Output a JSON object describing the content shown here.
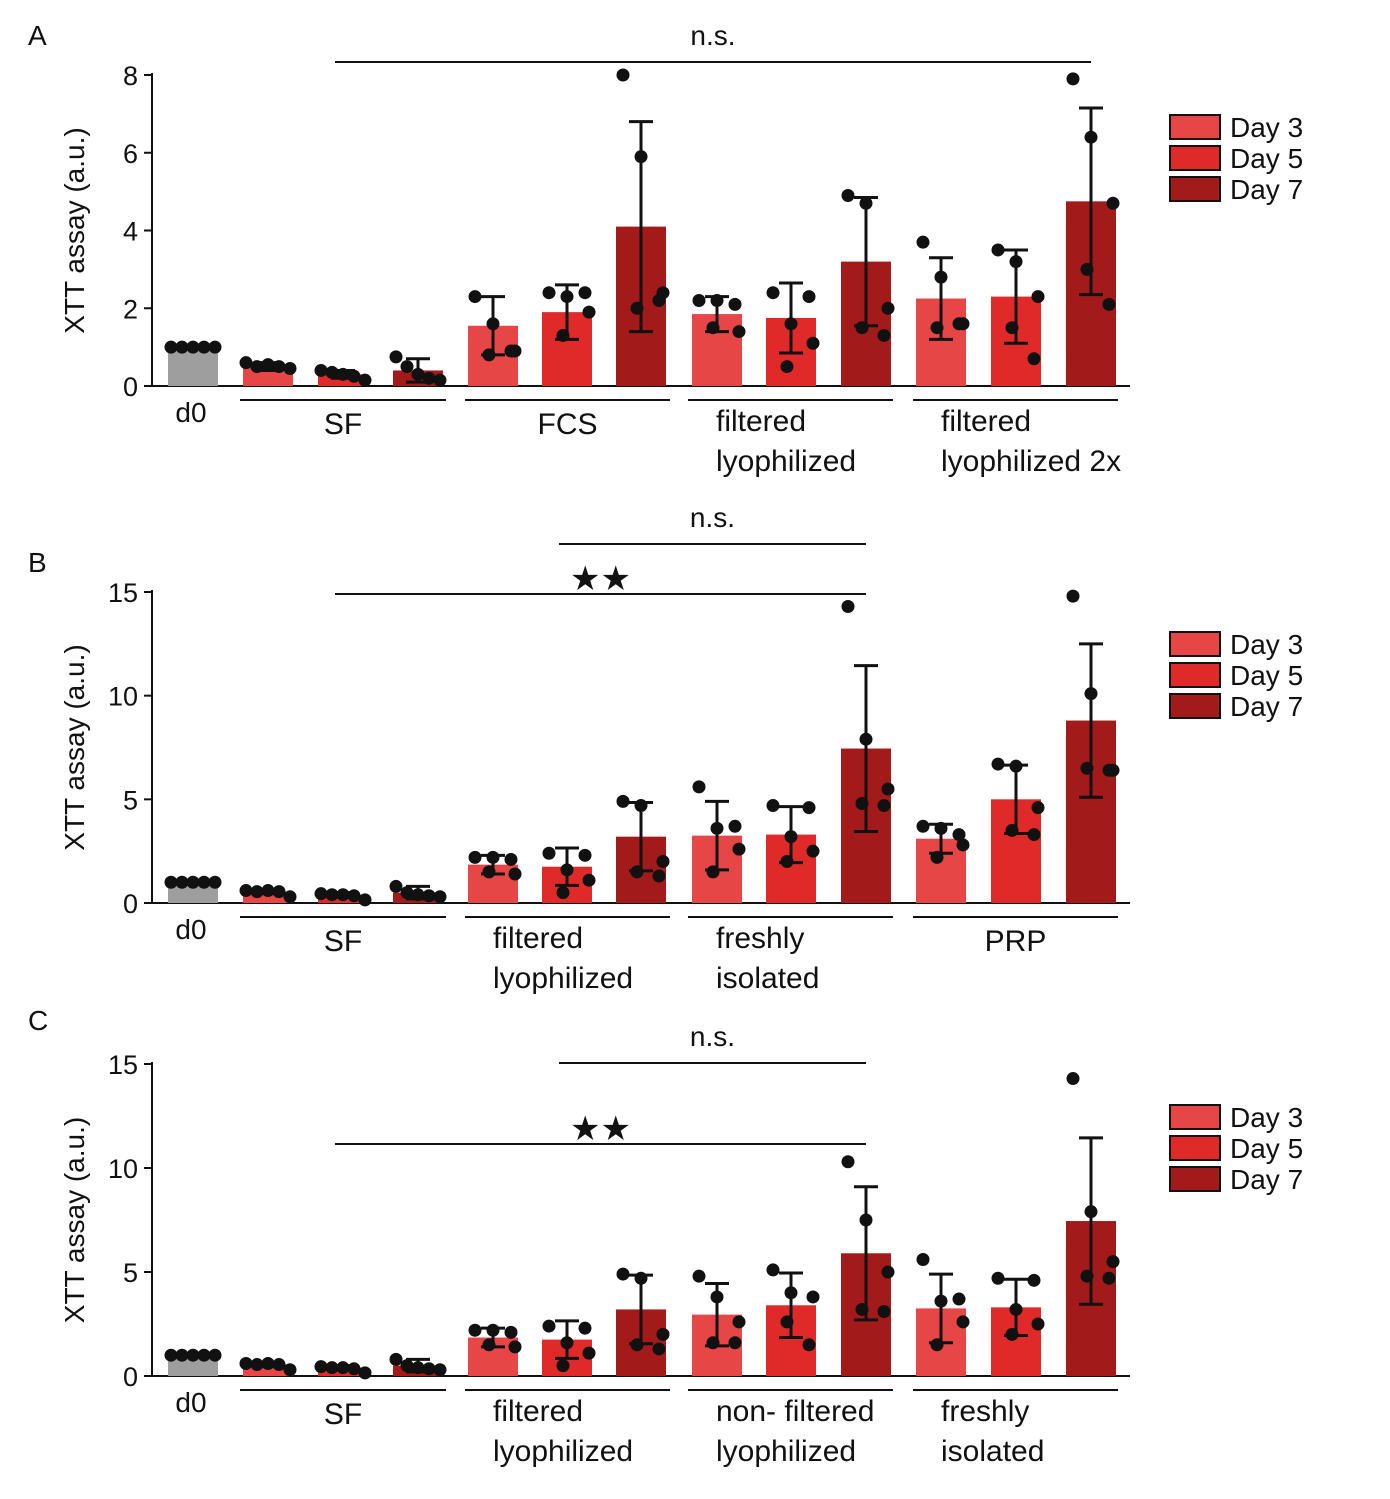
{
  "figure": {
    "axis_label": "XTT assay (a.u.)",
    "legend": [
      "Day 3",
      "Day 5",
      "Day 7"
    ],
    "colors": {
      "d0": "#9e9e9e",
      "day3": "#e64646",
      "day5": "#e02a2a",
      "day7": "#a31a1a",
      "ink": "#111111"
    }
  },
  "chart_data": [
    {
      "type": "bar",
      "panel": "A",
      "ylabel": "XTT assay (a.u.)",
      "ylim": [
        0,
        8
      ],
      "yticks": [
        0,
        2,
        4,
        6,
        8
      ],
      "legend": [
        "Day 3",
        "Day 5",
        "Day 7"
      ],
      "groups": [
        {
          "label": "d0",
          "bars": [
            {
              "series": "d0",
              "value": 1.0,
              "err": 0.05,
              "points": [
                1.0,
                1.0,
                1.0,
                1.0,
                1.0
              ]
            }
          ]
        },
        {
          "label": "SF",
          "bars": [
            {
              "series": "Day 3",
              "value": 0.5,
              "err": 0.1,
              "points": [
                0.6,
                0.5,
                0.55,
                0.5,
                0.45
              ]
            },
            {
              "series": "Day 5",
              "value": 0.3,
              "err": 0.1,
              "points": [
                0.4,
                0.35,
                0.3,
                0.25,
                0.15
              ]
            },
            {
              "series": "Day 7",
              "value": 0.4,
              "err": 0.3,
              "points": [
                0.75,
                0.5,
                0.3,
                0.2,
                0.15
              ]
            }
          ]
        },
        {
          "label": "FCS",
          "bars": [
            {
              "series": "Day 3",
              "value": 1.55,
              "err": 0.75,
              "points": [
                2.3,
                1.6,
                0.9,
                0.8,
                0.9
              ]
            },
            {
              "series": "Day 5",
              "value": 1.9,
              "err": 0.7,
              "points": [
                2.4,
                2.3,
                1.9,
                1.3,
                2.4
              ]
            },
            {
              "series": "Day 7",
              "value": 4.1,
              "err": 2.7,
              "points": [
                8.0,
                5.9,
                2.4,
                2.0,
                2.2
              ]
            }
          ]
        },
        {
          "label": "filtered\nlyophilized",
          "bars": [
            {
              "series": "Day 3",
              "value": 1.85,
              "err": 0.45,
              "points": [
                2.2,
                2.2,
                1.4,
                1.5,
                2.1
              ]
            },
            {
              "series": "Day 5",
              "value": 1.75,
              "err": 0.9,
              "points": [
                2.4,
                1.6,
                1.1,
                0.5,
                2.3
              ]
            },
            {
              "series": "Day 7",
              "value": 3.2,
              "err": 1.65,
              "points": [
                4.9,
                4.7,
                2.0,
                1.5,
                1.3
              ]
            }
          ]
        },
        {
          "label": "filtered\nlyophilized 2x",
          "bars": [
            {
              "series": "Day 3",
              "value": 2.25,
              "err": 1.05,
              "points": [
                3.7,
                2.8,
                1.6,
                1.5,
                1.6
              ]
            },
            {
              "series": "Day 5",
              "value": 2.3,
              "err": 1.2,
              "points": [
                3.5,
                3.2,
                2.3,
                1.5,
                0.7
              ]
            },
            {
              "series": "Day 7",
              "value": 4.75,
              "err": 2.4,
              "points": [
                7.9,
                6.4,
                4.7,
                3.0,
                2.1
              ]
            }
          ]
        }
      ],
      "sig": [
        {
          "from": 2,
          "to": 12,
          "label": "n.s."
        }
      ]
    },
    {
      "type": "bar",
      "panel": "B",
      "ylabel": "XTT assay (a.u.)",
      "ylim": [
        0,
        15
      ],
      "yticks": [
        0,
        5,
        10,
        15
      ],
      "legend": [
        "Day 3",
        "Day 5",
        "Day 7"
      ],
      "groups": [
        {
          "label": "d0",
          "bars": [
            {
              "series": "d0",
              "value": 1.0,
              "err": 0.05,
              "points": [
                1.0,
                1.0,
                1.0,
                1.0,
                1.0
              ]
            }
          ]
        },
        {
          "label": "SF",
          "bars": [
            {
              "series": "Day 3",
              "value": 0.55,
              "err": 0.1,
              "points": [
                0.6,
                0.55,
                0.6,
                0.55,
                0.3
              ]
            },
            {
              "series": "Day 5",
              "value": 0.4,
              "err": 0.1,
              "points": [
                0.45,
                0.4,
                0.4,
                0.35,
                0.15
              ]
            },
            {
              "series": "Day 7",
              "value": 0.5,
              "err": 0.3,
              "points": [
                0.8,
                0.5,
                0.4,
                0.35,
                0.3
              ]
            }
          ]
        },
        {
          "label": "filtered\nlyophilized",
          "bars": [
            {
              "series": "Day 3",
              "value": 1.85,
              "err": 0.45,
              "points": [
                2.2,
                2.2,
                1.4,
                1.5,
                2.1
              ]
            },
            {
              "series": "Day 5",
              "value": 1.75,
              "err": 0.9,
              "points": [
                2.4,
                1.6,
                1.1,
                0.5,
                2.3
              ]
            },
            {
              "series": "Day 7",
              "value": 3.2,
              "err": 1.65,
              "points": [
                4.9,
                4.7,
                2.0,
                1.5,
                1.3
              ]
            }
          ]
        },
        {
          "label": "freshly\nisolated",
          "bars": [
            {
              "series": "Day 3",
              "value": 3.25,
              "err": 1.65,
              "points": [
                5.6,
                3.6,
                2.6,
                1.5,
                3.7
              ]
            },
            {
              "series": "Day 5",
              "value": 3.3,
              "err": 1.35,
              "points": [
                4.7,
                3.2,
                2.5,
                2.0,
                4.6
              ]
            },
            {
              "series": "Day 7",
              "value": 7.45,
              "err": 4.0,
              "points": [
                14.3,
                7.9,
                5.5,
                4.8,
                4.7
              ]
            }
          ]
        },
        {
          "label": "PRP",
          "bars": [
            {
              "series": "Day 3",
              "value": 3.1,
              "err": 0.7,
              "points": [
                3.7,
                3.6,
                2.8,
                2.2,
                3.3
              ]
            },
            {
              "series": "Day 5",
              "value": 5.0,
              "err": 1.65,
              "points": [
                6.7,
                6.6,
                4.6,
                3.5,
                3.3
              ]
            },
            {
              "series": "Day 7",
              "value": 8.8,
              "err": 3.7,
              "points": [
                14.8,
                10.1,
                6.4,
                6.5,
                6.4
              ]
            }
          ]
        }
      ],
      "sig": [
        {
          "from": 5,
          "to": 9,
          "label": "n.s."
        },
        {
          "from": 2,
          "to": 9,
          "label": "★★"
        }
      ]
    },
    {
      "type": "bar",
      "panel": "C",
      "ylabel": "XTT assay (a.u.)",
      "ylim": [
        0,
        15
      ],
      "yticks": [
        0,
        5,
        10,
        15
      ],
      "legend": [
        "Day 3",
        "Day 5",
        "Day 7"
      ],
      "groups": [
        {
          "label": "d0",
          "bars": [
            {
              "series": "d0",
              "value": 1.0,
              "err": 0.05,
              "points": [
                1.0,
                1.0,
                1.0,
                1.0,
                1.0
              ]
            }
          ]
        },
        {
          "label": "SF",
          "bars": [
            {
              "series": "Day 3",
              "value": 0.55,
              "err": 0.1,
              "points": [
                0.6,
                0.55,
                0.6,
                0.55,
                0.3
              ]
            },
            {
              "series": "Day 5",
              "value": 0.4,
              "err": 0.1,
              "points": [
                0.45,
                0.4,
                0.4,
                0.35,
                0.15
              ]
            },
            {
              "series": "Day 7",
              "value": 0.5,
              "err": 0.3,
              "points": [
                0.8,
                0.5,
                0.4,
                0.35,
                0.3
              ]
            }
          ]
        },
        {
          "label": "filtered\nlyophilized",
          "bars": [
            {
              "series": "Day 3",
              "value": 1.85,
              "err": 0.45,
              "points": [
                2.2,
                2.2,
                1.4,
                1.5,
                2.1
              ]
            },
            {
              "series": "Day 5",
              "value": 1.75,
              "err": 0.9,
              "points": [
                2.4,
                1.6,
                1.1,
                0.5,
                2.3
              ]
            },
            {
              "series": "Day 7",
              "value": 3.2,
              "err": 1.65,
              "points": [
                4.9,
                4.7,
                2.0,
                1.5,
                1.3
              ]
            }
          ]
        },
        {
          "label": "non- filtered\nlyophilized",
          "bars": [
            {
              "series": "Day 3",
              "value": 2.95,
              "err": 1.5,
              "points": [
                4.8,
                3.8,
                2.6,
                1.6,
                1.6
              ]
            },
            {
              "series": "Day 5",
              "value": 3.4,
              "err": 1.55,
              "points": [
                5.1,
                4.0,
                3.8,
                2.6,
                1.5
              ]
            },
            {
              "series": "Day 7",
              "value": 5.9,
              "err": 3.2,
              "points": [
                10.3,
                7.5,
                5.0,
                3.2,
                3.1
              ]
            }
          ]
        },
        {
          "label": "freshly\nisolated",
          "bars": [
            {
              "series": "Day 3",
              "value": 3.25,
              "err": 1.65,
              "points": [
                5.6,
                3.6,
                2.6,
                1.5,
                3.7
              ]
            },
            {
              "series": "Day 5",
              "value": 3.3,
              "err": 1.35,
              "points": [
                4.7,
                3.2,
                2.5,
                2.0,
                4.6
              ]
            },
            {
              "series": "Day 7",
              "value": 7.45,
              "err": 4.0,
              "points": [
                14.3,
                7.9,
                5.5,
                4.8,
                4.7
              ]
            }
          ]
        }
      ],
      "sig": [
        {
          "from": 5,
          "to": 9,
          "label": "n.s."
        },
        {
          "from": 2,
          "to": 9,
          "label": "★★"
        }
      ]
    }
  ]
}
